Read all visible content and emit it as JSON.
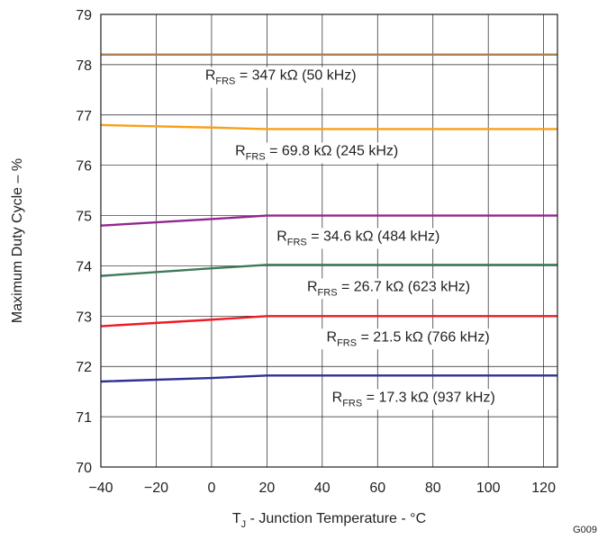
{
  "chart_data": {
    "type": "line",
    "xlabel": {
      "main": "T",
      "sub": "J",
      "rest": " - Junction Temperature - °C"
    },
    "ylabel": "Maximum Duty Cycle – %",
    "xlim": [
      -40,
      125
    ],
    "ylim": [
      70,
      79
    ],
    "xticks": [
      "−40",
      "−20",
      "0",
      "20",
      "40",
      "60",
      "80",
      "100",
      "120"
    ],
    "xtick_values": [
      -40,
      -20,
      0,
      20,
      40,
      60,
      80,
      100,
      120
    ],
    "yticks": [
      "70",
      "71",
      "72",
      "73",
      "74",
      "75",
      "76",
      "77",
      "78",
      "79"
    ],
    "ytick_values": [
      70,
      71,
      72,
      73,
      74,
      75,
      76,
      77,
      78,
      79
    ],
    "grid": true,
    "figure_id": "G009",
    "series": [
      {
        "color": "#a97c50",
        "x": [
          -40,
          0,
          20,
          125
        ],
        "y": [
          78.2,
          78.2,
          78.2,
          78.2
        ],
        "label": {
          "main": "R",
          "sub": "FRS",
          "rest": " = 347 kΩ (50 kHz)"
        },
        "label_anchor": [
          25,
          77.7
        ]
      },
      {
        "color": "#f7a11a",
        "x": [
          -40,
          0,
          20,
          125
        ],
        "y": [
          76.8,
          76.75,
          76.72,
          76.72
        ],
        "label": {
          "main": "R",
          "sub": "FRS",
          "rest": " = 69.8 kΩ (245 kHz)"
        },
        "label_anchor": [
          38,
          76.2
        ]
      },
      {
        "color": "#92278f",
        "x": [
          -40,
          0,
          20,
          125
        ],
        "y": [
          74.8,
          74.93,
          75.0,
          75.0
        ],
        "label": {
          "main": "R",
          "sub": "FRS",
          "rest": " = 34.6 kΩ (484 kHz)"
        },
        "label_anchor": [
          53,
          74.5
        ]
      },
      {
        "color": "#3d7a5a",
        "x": [
          -40,
          0,
          20,
          125
        ],
        "y": [
          73.8,
          73.95,
          74.02,
          74.02
        ],
        "label": {
          "main": "R",
          "sub": "FRS",
          "rest": " = 26.7 kΩ (623 kHz)"
        },
        "label_anchor": [
          64,
          73.5
        ]
      },
      {
        "color": "#ed1c24",
        "x": [
          -40,
          0,
          20,
          125
        ],
        "y": [
          72.8,
          72.93,
          73.0,
          73.0
        ],
        "label": {
          "main": "R",
          "sub": "FRS",
          "rest": " = 21.5 kΩ (766 kHz)"
        },
        "label_anchor": [
          71,
          72.5
        ]
      },
      {
        "color": "#2e3192",
        "x": [
          -40,
          0,
          20,
          125
        ],
        "y": [
          71.7,
          71.77,
          71.82,
          71.82
        ],
        "label": {
          "main": "R",
          "sub": "FRS",
          "rest": " = 17.3 kΩ (937 kHz)"
        },
        "label_anchor": [
          73,
          71.3
        ]
      }
    ]
  }
}
